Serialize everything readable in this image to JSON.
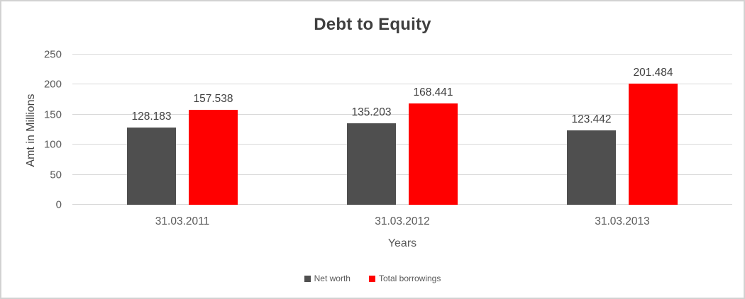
{
  "chart_data": {
    "type": "bar",
    "title": "Debt to Equity",
    "xlabel": "Years",
    "ylabel": "Amt in Millions",
    "ylim": [
      0,
      250
    ],
    "ytick_step": 50,
    "yticks": [
      0,
      50,
      100,
      150,
      200,
      250
    ],
    "grid": true,
    "legend_position": "bottom",
    "data_labels": true,
    "categories": [
      "31.03.2011",
      "31.03.2012",
      "31.03.2013"
    ],
    "series": [
      {
        "name": "Net worth",
        "color": "#4f4f4f",
        "values": [
          128.183,
          135.203,
          123.442
        ]
      },
      {
        "name": "Total borrowings",
        "color": "#ff0000",
        "values": [
          157.538,
          168.441,
          201.484
        ]
      }
    ]
  },
  "colors": {
    "title_text": "#3f3f3f",
    "axis_text": "#595959",
    "data_label_text": "#404040",
    "gridline": "#d9d9d9",
    "frame_border": "#d2d2d2",
    "background": "#ffffff",
    "net_worth_bar": "#4f4f4f",
    "total_borrowings_bar": "#ff0000"
  }
}
